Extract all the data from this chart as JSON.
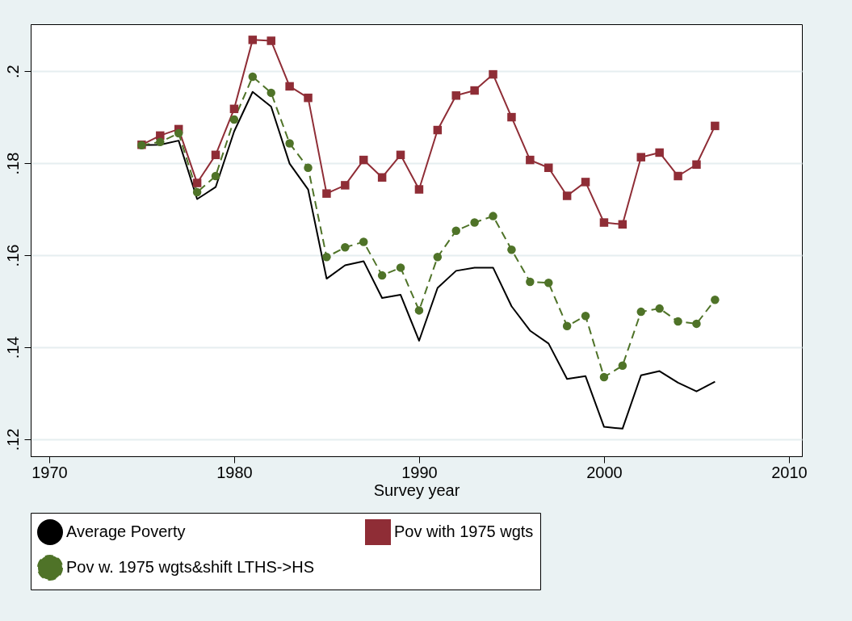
{
  "chart_data": {
    "type": "line",
    "xlabel": "Survey year",
    "x": [
      1975,
      1976,
      1977,
      1978,
      1979,
      1980,
      1981,
      1982,
      1983,
      1984,
      1985,
      1986,
      1987,
      1988,
      1989,
      1990,
      1991,
      1992,
      1993,
      1994,
      1995,
      1996,
      1997,
      1998,
      1999,
      2000,
      2001,
      2002,
      2003,
      2004,
      2005,
      2006
    ],
    "series": [
      {
        "name": "Average Poverty",
        "color": "#000000",
        "marker": "none",
        "line_style": "solid",
        "values": [
          0.1839,
          0.184,
          0.1849,
          0.1722,
          0.1748,
          0.1869,
          0.1955,
          0.1923,
          0.1799,
          0.1743,
          0.1549,
          0.1578,
          0.1587,
          0.1507,
          0.1514,
          0.1414,
          0.1529,
          0.1566,
          0.1573,
          0.1573,
          0.1489,
          0.1436,
          0.1408,
          0.1331,
          0.1337,
          0.1227,
          0.1223,
          0.1339,
          0.1348,
          0.1323,
          0.1304,
          0.1325
        ]
      },
      {
        "name": "Pov with 1975 wgts",
        "color": "#8f2d36",
        "marker": "square",
        "line_style": "solid",
        "values": [
          0.184,
          0.186,
          0.1874,
          0.1757,
          0.1818,
          0.1918,
          0.2068,
          0.2066,
          0.1967,
          0.1942,
          0.1734,
          0.1752,
          0.1807,
          0.1769,
          0.1818,
          0.1743,
          0.1872,
          0.1947,
          0.1958,
          0.1993,
          0.19,
          0.1807,
          0.179,
          0.1729,
          0.1759,
          0.1671,
          0.1667,
          0.1813,
          0.1823,
          0.1772,
          0.1797,
          0.1881
        ]
      },
      {
        "name": "Pov w. 1975 wgts&shift LTHS->HS",
        "color": "#4f7328",
        "marker": "circle",
        "line_style": "dashed",
        "values": [
          0.1839,
          0.1846,
          0.1865,
          0.1737,
          0.1772,
          0.1895,
          0.1988,
          0.1953,
          0.1843,
          0.179,
          0.1596,
          0.1617,
          0.1629,
          0.1556,
          0.1573,
          0.148,
          0.1596,
          0.1653,
          0.1671,
          0.1685,
          0.1612,
          0.1542,
          0.154,
          0.1446,
          0.1468,
          0.1335,
          0.136,
          0.1477,
          0.1484,
          0.1456,
          0.1451,
          0.1503
        ]
      }
    ],
    "xlim": [
      1969,
      2010.7
    ],
    "xticks": [
      1970,
      1980,
      1990,
      2000,
      2010
    ],
    "ylim": [
      0.1163,
      0.2102
    ],
    "yticks": [
      {
        "value": 0.12,
        "label": ".12"
      },
      {
        "value": 0.14,
        "label": ".14"
      },
      {
        "value": 0.16,
        "label": ".16"
      },
      {
        "value": 0.18,
        "label": ".18"
      },
      {
        "value": 0.2,
        "label": ".2"
      }
    ],
    "grid": "y",
    "legend": "bottom"
  }
}
